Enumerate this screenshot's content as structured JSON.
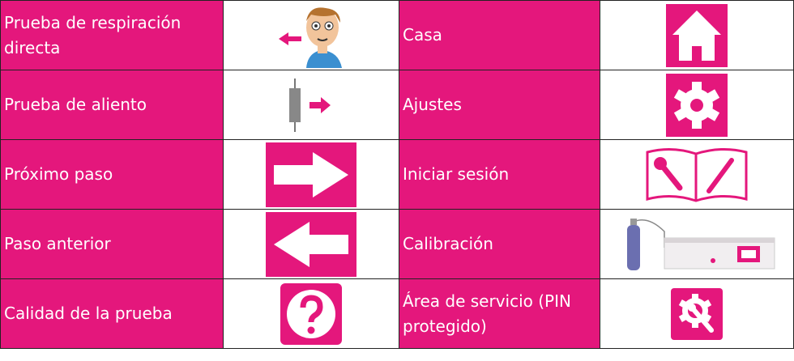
{
  "table": {
    "rows": [
      [
        "Prueba de respiración directa",
        "Casa"
      ],
      [
        "Prueba de aliento",
        "Ajustes"
      ],
      [
        "Próximo paso",
        "Iniciar sesión"
      ],
      [
        "Paso anterior",
        "Calibración"
      ],
      [
        "Calidad de la prueba",
        "Área de servicio (PIN protegido)"
      ]
    ]
  }
}
